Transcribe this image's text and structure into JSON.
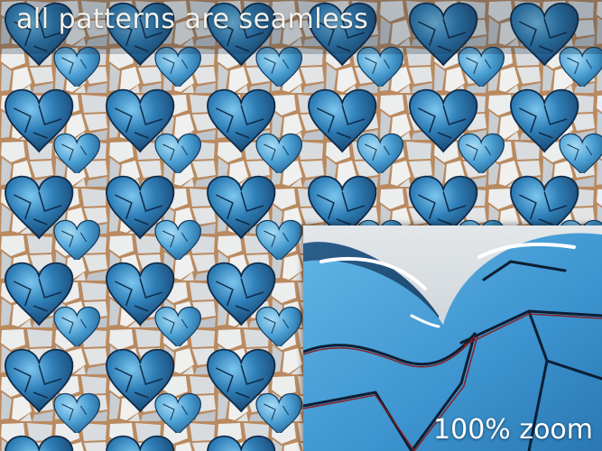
{
  "headline": "all patterns are seamless",
  "zoom_label": "100% zoom",
  "colors": {
    "heart_dark": "#1c4f7e",
    "heart_mid": "#2f7fb8",
    "heart_light": "#5fb3e0",
    "stone_white": "#e9eaea",
    "stone_grey": "#b9c0c6",
    "grout_tan": "#c48a52",
    "crack_red": "#8a1a1a"
  },
  "icons": [
    "heart-tile",
    "cracked-stone-tile",
    "zoom-detail-inset"
  ]
}
